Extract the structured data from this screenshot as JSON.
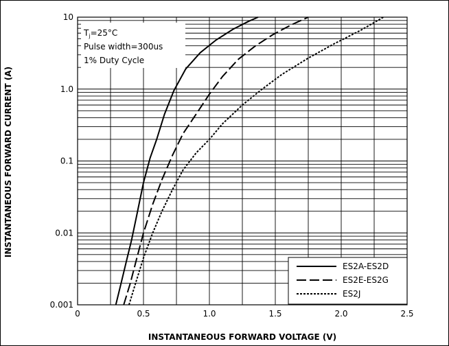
{
  "chart_data": {
    "type": "line",
    "title": "",
    "xlabel": "INSTANTANEOUS FORWARD VOLTAGE (V)",
    "ylabel": "INSTANTANEOUS FORWARD CURRENT (A)",
    "xlim": [
      0,
      2.5
    ],
    "ylim": [
      0.001,
      10
    ],
    "yscale": "log",
    "xticks": [
      0,
      0.5,
      1.0,
      1.5,
      2.0,
      2.5
    ],
    "xtick_labels": [
      "0",
      "0.5",
      "1.0",
      "1.5",
      "2.0",
      "2.5"
    ],
    "yticks": [
      0.001,
      0.01,
      0.1,
      1.0,
      10
    ],
    "ytick_labels": [
      "0.001",
      "0.01",
      "0.1",
      "1.0",
      "10"
    ],
    "grid": true,
    "annotation": {
      "condition_1": "T",
      "condition_1_sub": "j",
      "condition_1_rest": "=25°C",
      "condition_2": "Pulse width=300us",
      "condition_3": "1% Duty Cycle"
    },
    "legend_position": "bottom-right",
    "series": [
      {
        "name": "ES2A-ES2D",
        "style": "solid",
        "x": [
          0.29,
          0.33,
          0.37,
          0.41,
          0.45,
          0.5,
          0.55,
          0.6,
          0.66,
          0.73,
          0.82,
          0.93,
          1.05,
          1.18,
          1.3,
          1.37
        ],
        "y": [
          0.001,
          0.002,
          0.004,
          0.008,
          0.018,
          0.05,
          0.11,
          0.2,
          0.45,
          0.95,
          1.9,
          3.2,
          4.8,
          6.8,
          8.8,
          10
        ]
      },
      {
        "name": "ES2E-ES2G",
        "style": "dashed",
        "x": [
          0.35,
          0.4,
          0.45,
          0.5,
          0.57,
          0.64,
          0.72,
          0.8,
          0.9,
          1.0,
          1.1,
          1.22,
          1.35,
          1.48,
          1.62,
          1.75
        ],
        "y": [
          0.001,
          0.002,
          0.0045,
          0.01,
          0.025,
          0.055,
          0.12,
          0.24,
          0.45,
          0.85,
          1.5,
          2.6,
          4.0,
          5.7,
          7.8,
          10
        ]
      },
      {
        "name": "ES2J",
        "style": "dotted",
        "x": [
          0.39,
          0.44,
          0.5,
          0.57,
          0.64,
          0.72,
          0.8,
          0.9,
          1.0,
          1.1,
          1.25,
          1.4,
          1.55,
          1.75,
          1.95,
          2.15,
          2.32
        ],
        "y": [
          0.001,
          0.002,
          0.0045,
          0.01,
          0.02,
          0.04,
          0.075,
          0.13,
          0.2,
          0.33,
          0.6,
          1.0,
          1.6,
          2.7,
          4.3,
          6.6,
          10
        ]
      }
    ]
  }
}
